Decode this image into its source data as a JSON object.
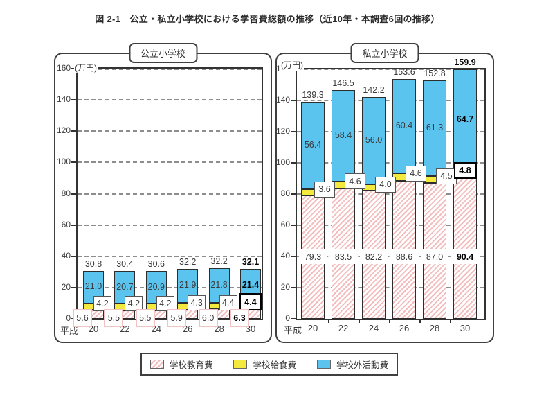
{
  "page_title": "図 2-1　公立・私立小学校における学習費総額の推移（近10年・本調査6回の推移）",
  "era_label": "平成",
  "colors": {
    "blue": "#5AC3EE",
    "yellow": "#F4EA3D",
    "pink_stripe": "#F3BDBD",
    "bar_outline": "#2d2d2d"
  },
  "legend": {
    "items": [
      {
        "label": "学校教育費",
        "swatch": "hatched-pink"
      },
      {
        "label": "学校給食費",
        "swatch": "yellow"
      },
      {
        "label": "学校外活動費",
        "swatch": "blue"
      }
    ]
  },
  "chart_data": [
    {
      "type": "bar",
      "stacked": true,
      "title": "公立小学校",
      "ylabel": "(万円)",
      "x_prefix": "平成",
      "categories": [
        "20",
        "22",
        "24",
        "26",
        "28",
        "30"
      ],
      "ylim": [
        0,
        160
      ],
      "ytick_step": 20,
      "grid": "dashed-horizontal",
      "legend_position": "shared-bottom",
      "series": [
        {
          "name": "学校教育費",
          "values": [
            5.6,
            5.5,
            5.5,
            5.9,
            6.0,
            6.3
          ]
        },
        {
          "name": "学校給食費",
          "values": [
            4.2,
            4.2,
            4.2,
            4.3,
            4.4,
            4.4
          ]
        },
        {
          "name": "学校外活動費",
          "values": [
            21.0,
            20.7,
            20.9,
            21.9,
            21.8,
            21.4
          ]
        }
      ],
      "totals": [
        30.8,
        30.4,
        30.6,
        32.2,
        32.2,
        32.1
      ]
    },
    {
      "type": "bar",
      "stacked": true,
      "title": "私立小学校",
      "ylabel": "(万円)",
      "x_prefix": "平成",
      "categories": [
        "20",
        "22",
        "24",
        "26",
        "28",
        "30"
      ],
      "ylim": [
        0,
        160
      ],
      "ytick_step": 20,
      "grid": "dashed-horizontal",
      "legend_position": "shared-bottom",
      "series": [
        {
          "name": "学校教育費",
          "values": [
            79.3,
            83.5,
            82.2,
            88.6,
            87.0,
            90.4
          ]
        },
        {
          "name": "学校給食費",
          "values": [
            3.6,
            4.6,
            4.0,
            4.6,
            4.5,
            4.8
          ]
        },
        {
          "name": "学校外活動費",
          "values": [
            56.4,
            58.4,
            56.0,
            60.4,
            61.3,
            64.7
          ]
        }
      ],
      "totals": [
        139.3,
        146.5,
        142.2,
        153.6,
        152.8,
        159.9
      ]
    }
  ]
}
